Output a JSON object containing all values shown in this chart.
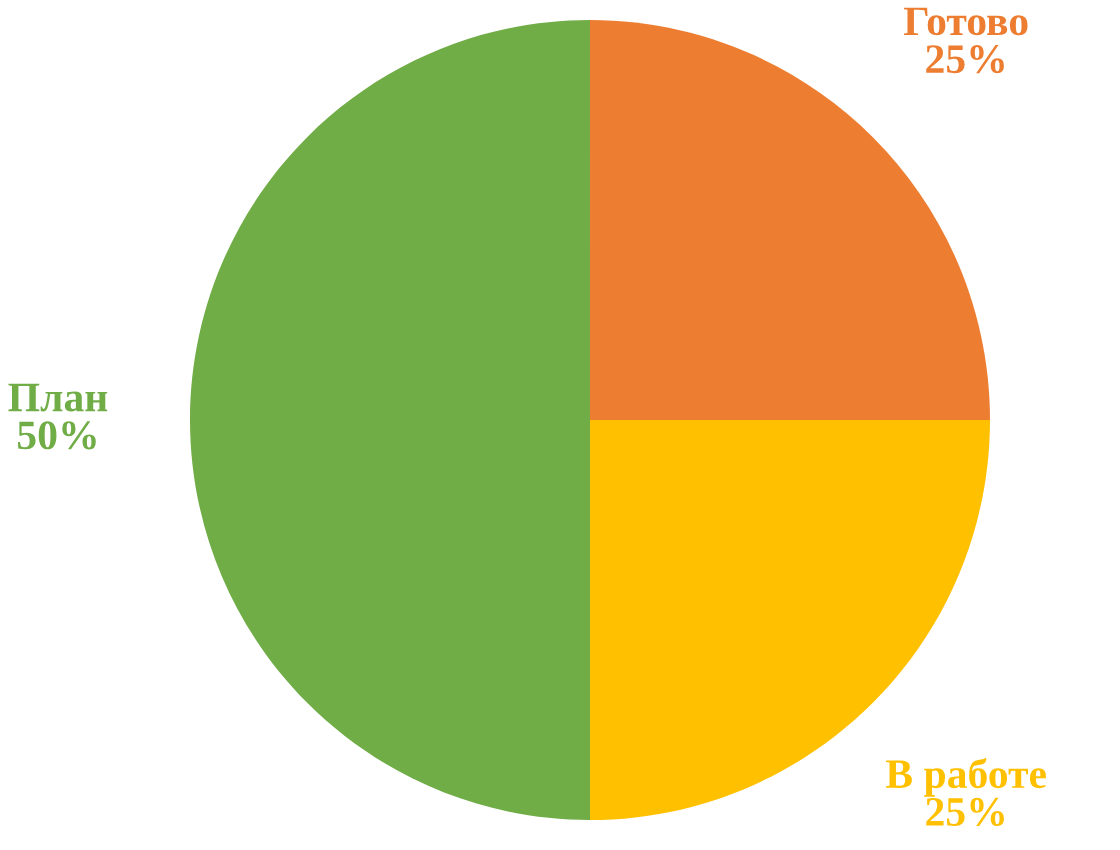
{
  "chart_data": {
    "type": "pie",
    "categories": [
      "Готово",
      "В работе",
      "План"
    ],
    "values": [
      25,
      25,
      50
    ],
    "value_labels": [
      "25%",
      "25%",
      "50%"
    ],
    "colors": [
      "#ed7d31",
      "#ffc000",
      "#70ad47"
    ],
    "legend": false
  }
}
